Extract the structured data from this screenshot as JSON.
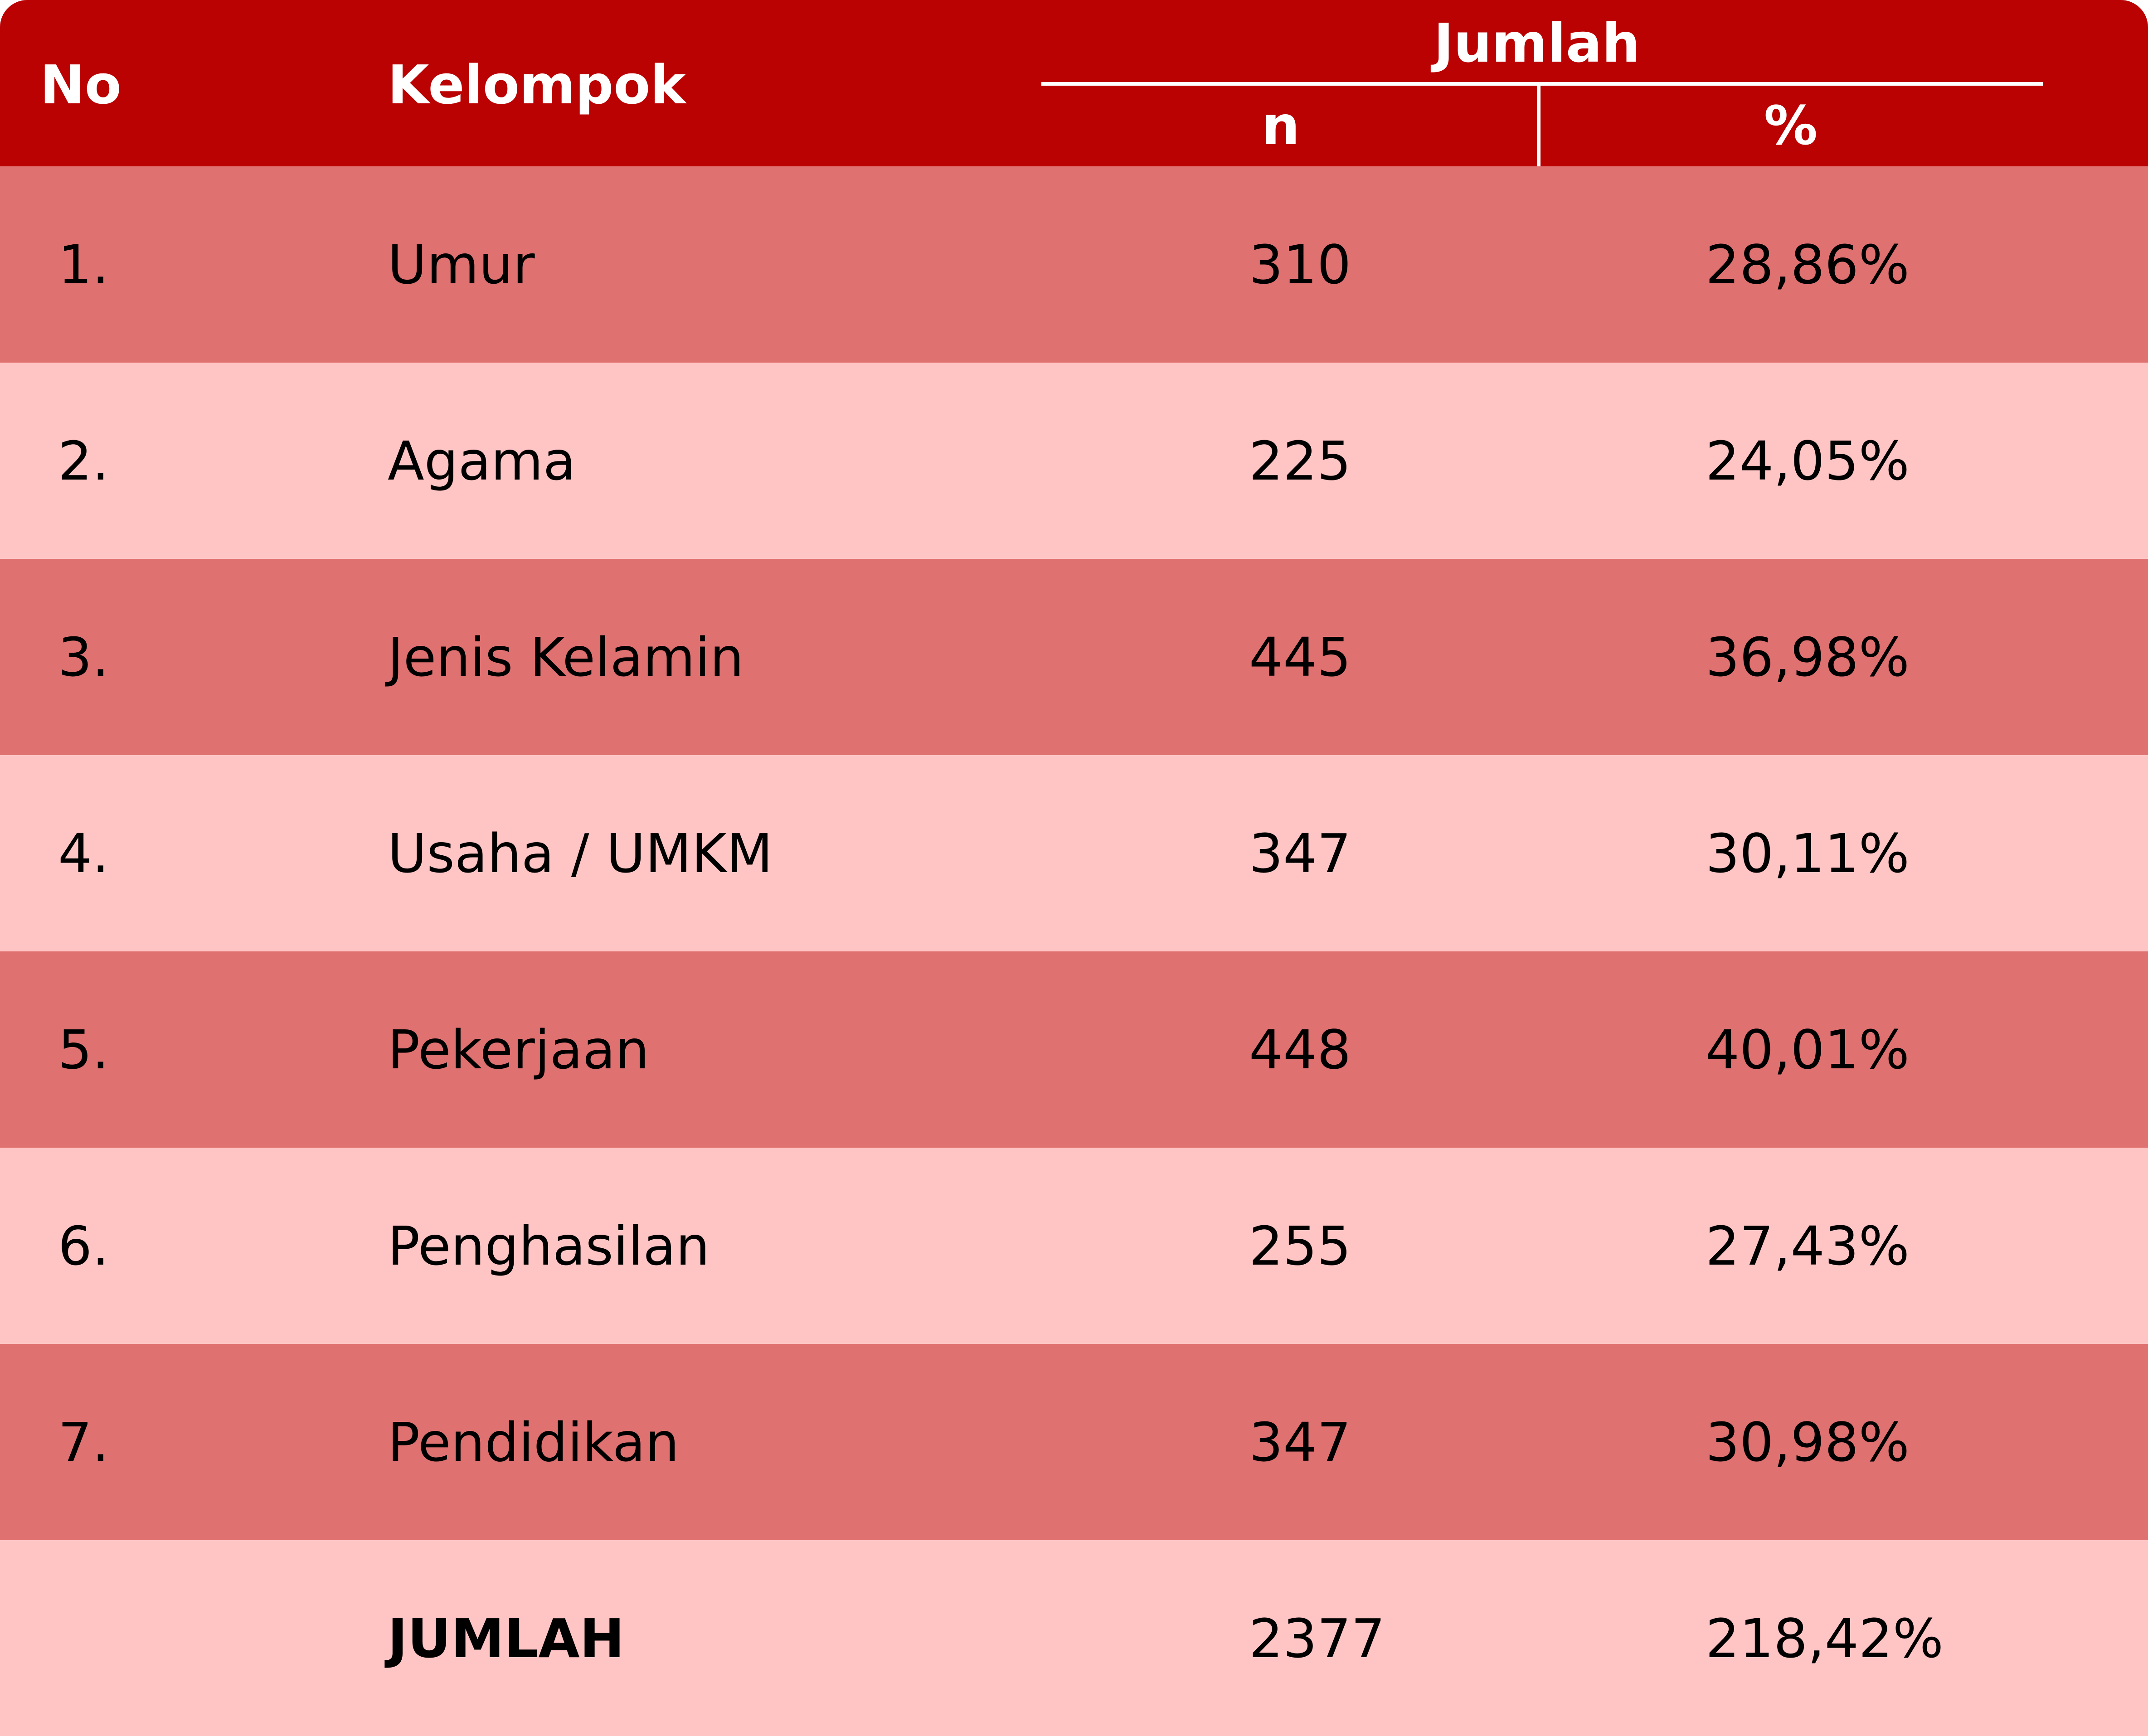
{
  "header": {
    "no": "No",
    "kelompok": "Kelompok",
    "jumlah": "Jumlah",
    "n": "n",
    "percent": "%"
  },
  "rows": [
    {
      "no": "1.",
      "kelompok": "Umur",
      "n": "310",
      "percent": "28,86%"
    },
    {
      "no": "2.",
      "kelompok": "Agama",
      "n": "225",
      "percent": "24,05%"
    },
    {
      "no": "3.",
      "kelompok": "Jenis Kelamin",
      "n": "445",
      "percent": "36,98%"
    },
    {
      "no": "4.",
      "kelompok": "Usaha / UMKM",
      "n": "347",
      "percent": "30,11%"
    },
    {
      "no": "5.",
      "kelompok": "Pekerjaan",
      "n": "448",
      "percent": "40,01%"
    },
    {
      "no": "6.",
      "kelompok": "Penghasilan",
      "n": "255",
      "percent": "27,43%"
    },
    {
      "no": "7.",
      "kelompok": "Pendidikan",
      "n": "347",
      "percent": "30,98%"
    }
  ],
  "total": {
    "label": "JUMLAH",
    "n": "2377",
    "percent": "218,42%"
  },
  "colors": {
    "header_bg": "#bb0203",
    "row_dark": "#e07171",
    "row_light": "#ffc5c5"
  }
}
